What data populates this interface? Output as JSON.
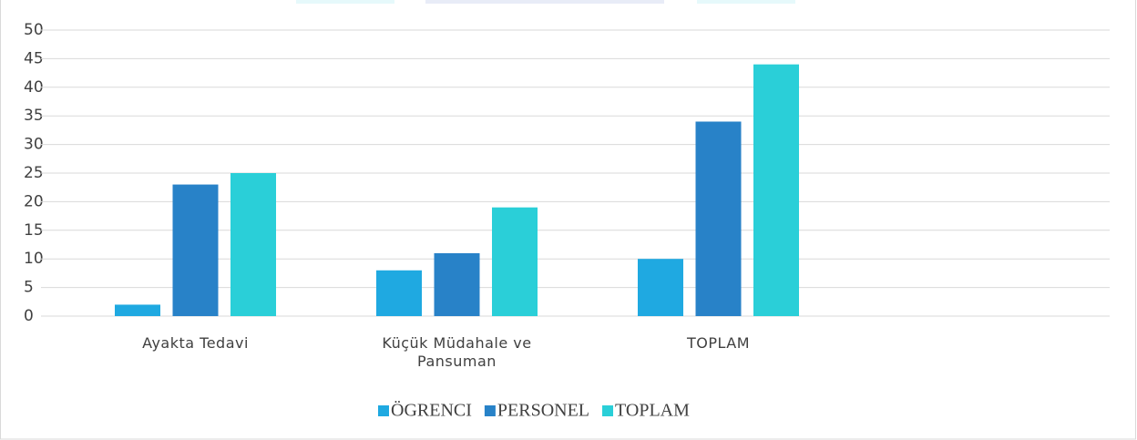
{
  "chart_data": {
    "type": "bar",
    "categories": [
      "Ayakta Tedavi",
      "Küçük Müdahale ve Pansuman",
      "TOPLAM",
      null
    ],
    "series": [
      {
        "name": "ÖGRENCI",
        "color": "#1fa9e1",
        "values": [
          2,
          8,
          10,
          null
        ]
      },
      {
        "name": "PERSONEL",
        "color": "#2882c8",
        "values": [
          23,
          11,
          34,
          null
        ]
      },
      {
        "name": "TOPLAM",
        "color": "#2acfd8",
        "values": [
          25,
          19,
          44,
          null
        ]
      }
    ],
    "ylim": [
      0,
      50
    ],
    "yticks": [
      0,
      5,
      10,
      15,
      20,
      25,
      30,
      35,
      40,
      45,
      50
    ],
    "grid": true,
    "legend": "bottom"
  }
}
